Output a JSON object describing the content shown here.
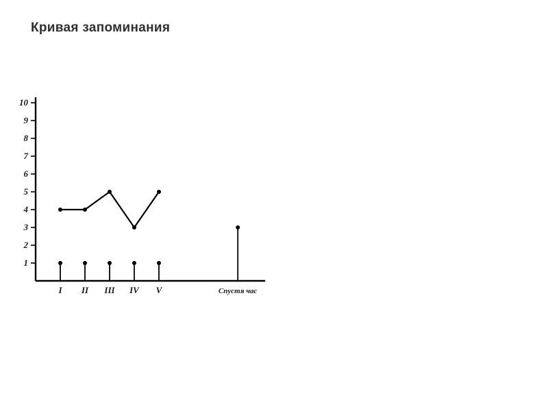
{
  "title": "Кривая запоминания",
  "title_fontsize": 19,
  "chart": {
    "type": "line",
    "background_color": "#ffffff",
    "axis_color": "#000000",
    "line_color": "#000000",
    "line_width": 2.2,
    "marker_radius": 3,
    "ylim": [
      0,
      10
    ],
    "yticks": [
      1,
      2,
      3,
      4,
      5,
      6,
      7,
      8,
      9,
      10
    ],
    "ytick_labels": [
      "1",
      "2",
      "3",
      "4",
      "5",
      "6",
      "7",
      "8",
      "9",
      "10"
    ],
    "ytick_fontsize": 13,
    "xticks": [
      "I",
      "II",
      "III",
      "IV",
      "V",
      "Спустя час"
    ],
    "xtick_fontsize": 13,
    "xtick_last_fontsize": 11,
    "x_positions": [
      1,
      2,
      3,
      4,
      5,
      8.2
    ],
    "x_unit": 36,
    "series": {
      "values_main": [
        4,
        4,
        5,
        3,
        5
      ],
      "value_last": 3
    },
    "xtick_stub_height": 1,
    "geom": {
      "origin_x": 44,
      "origin_y": 290,
      "y_unit": 26,
      "axis_width": 2.4,
      "tick_len": 7
    }
  }
}
